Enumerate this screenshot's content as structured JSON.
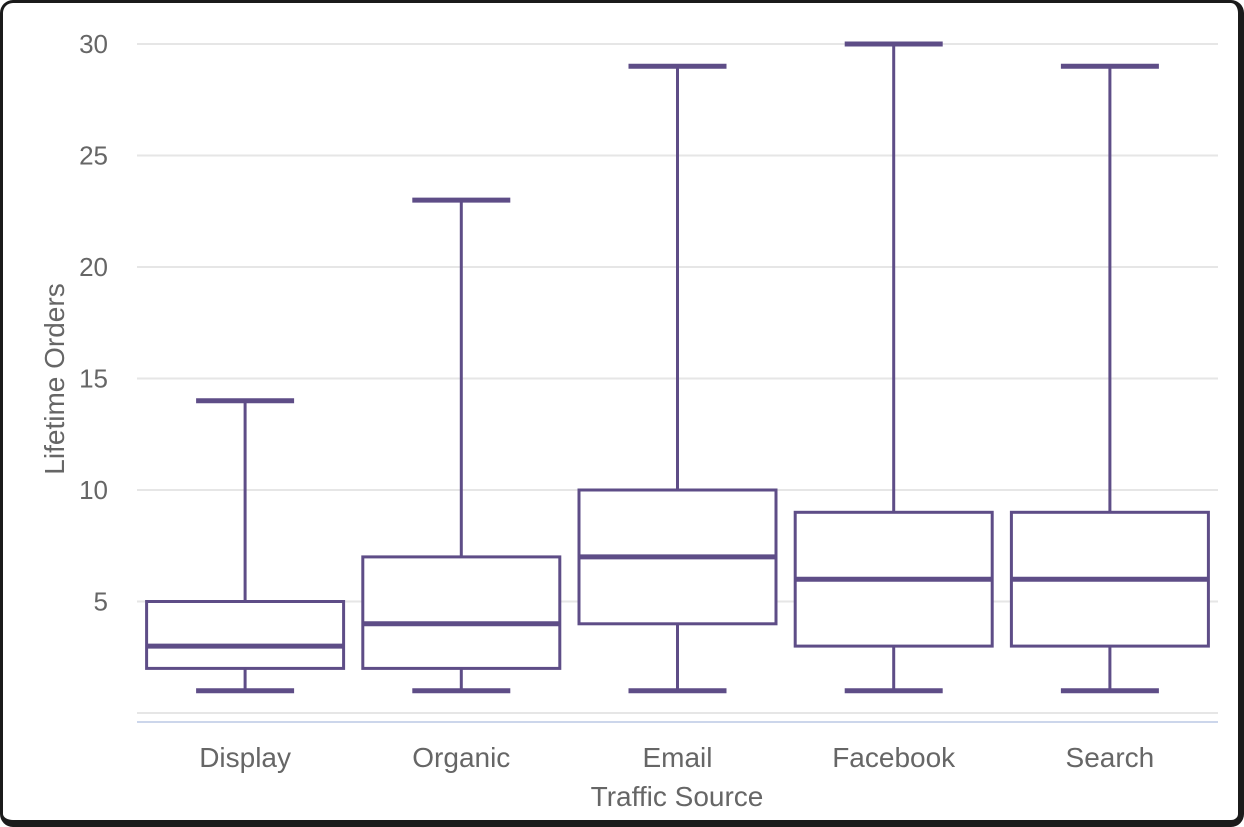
{
  "chart_data": {
    "type": "boxplot",
    "title": "",
    "xlabel": "Traffic Source",
    "ylabel": "Lifetime Orders",
    "categories": [
      "Display",
      "Organic",
      "Email",
      "Facebook",
      "Search"
    ],
    "series": [
      {
        "points": [
          {
            "category": "Display",
            "low": 1,
            "q1": 2,
            "median": 3,
            "q3": 5,
            "high": 14
          },
          {
            "category": "Organic",
            "low": 1,
            "q1": 2,
            "median": 4,
            "q3": 7,
            "high": 23
          },
          {
            "category": "Email",
            "low": 1,
            "q1": 4,
            "median": 7,
            "q3": 10,
            "high": 29
          },
          {
            "category": "Facebook",
            "low": 1,
            "q1": 3,
            "median": 6,
            "q3": 9,
            "high": 30
          },
          {
            "category": "Search",
            "low": 1,
            "q1": 3,
            "median": 6,
            "q3": 9,
            "high": 29
          }
        ]
      }
    ],
    "ylim": [
      0,
      30
    ],
    "ytick_labels": [
      5,
      10,
      15,
      20,
      25,
      30
    ],
    "gridline_values": [
      0,
      5,
      10,
      15,
      20,
      25,
      30
    ],
    "grid": true,
    "legend": "none",
    "colors": {
      "box_stroke": "#5e4d87",
      "box_fill": "#ffffff",
      "gridline": "#e6e6e6",
      "axis_line": "#ccd6eb",
      "label_text": "#666666",
      "frame_border": "#1b1b1b",
      "background": "#ffffff"
    }
  }
}
